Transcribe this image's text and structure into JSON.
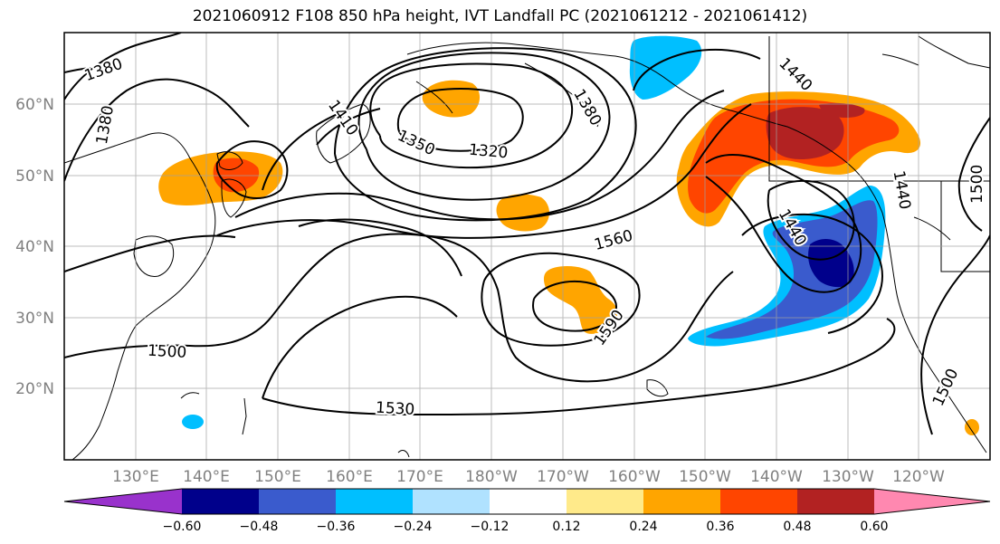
{
  "title": "2021060912 F108 850 hPa height, IVT Landfall PC (2021061212 - 2021061412)",
  "map": {
    "projection": "PlateCarree",
    "lon_range": [
      120,
      250
    ],
    "lat_range": [
      10,
      70
    ],
    "lat_ticks": [
      "20°N",
      "30°N",
      "40°N",
      "50°N",
      "60°N"
    ],
    "lon_ticks": [
      "130°E",
      "140°E",
      "150°E",
      "160°E",
      "170°E",
      "180°W",
      "170°W",
      "160°W",
      "150°W",
      "140°W",
      "130°W",
      "120°W"
    ],
    "gridlines": true,
    "features": [
      "coastlines",
      "borders",
      "states"
    ]
  },
  "height_contours": {
    "variable": "850 hPa geopotential height",
    "units": "m",
    "labels": [
      "1380",
      "1380",
      "1410",
      "1350",
      "1320",
      "1380",
      "1440",
      "1440",
      "1440",
      "1500",
      "1560",
      "1590",
      "1500",
      "1530",
      "1500"
    ]
  },
  "ivt_shading": {
    "variable": "IVT Landfall PC",
    "levels": [
      "-0.60",
      "-0.48",
      "-0.36",
      "-0.24",
      "-0.12",
      "0.12",
      "0.24",
      "0.36",
      "0.48",
      "0.60"
    ],
    "colors": [
      "#9932cc",
      "#00008b",
      "#3a5bcd",
      "#00bfff",
      "#b0e2ff",
      "#ffffff",
      "#ffea8a",
      "#ffa500",
      "#ff4500",
      "#b22222",
      "#ff88b0"
    ]
  },
  "colorbar": {
    "orientation": "horizontal",
    "extend": "both",
    "tick_labels": [
      "−0.60",
      "−0.48",
      "−0.36",
      "−0.24",
      "−0.12",
      "0.12",
      "0.24",
      "0.36",
      "0.48",
      "0.60"
    ]
  }
}
